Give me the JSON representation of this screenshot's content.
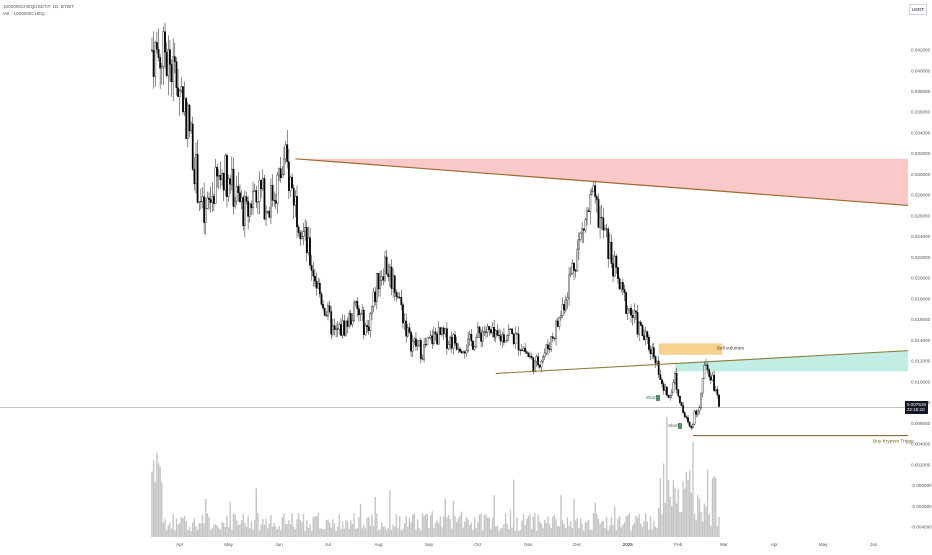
{
  "header": {
    "symbol_line": "1000000CHEQUSDT.P, 1D, BYBIT",
    "volume_line": "Vol · 1000000CHEQ"
  },
  "unit_label": "USDT",
  "price_tag": {
    "price": "0.007519",
    "countdown": "22:15:10"
  },
  "colors": {
    "candle_up": "#ffffff",
    "candle_down": "#000000",
    "resistance_zone": "#f7b6b6",
    "resistance_line": "#9c6a2e",
    "support_zone": "#a8e6d8",
    "support_line": "#8b7d3a",
    "sell_volume_box": "#f6c97a",
    "buy_line": "#7a5a1e",
    "short_tag": "#5a8d6b",
    "volume_bar": "#c4c4c4"
  },
  "annotations": {
    "sell_volumes": "Sell volumes",
    "buy_trigger": "Buy Krypton Trigge",
    "short_labels": [
      "Short",
      "Short"
    ]
  },
  "chart_data": {
    "type": "candlestick",
    "x_labels": [
      "Apr",
      "May",
      "Jun",
      "Jul",
      "Aug",
      "Sep",
      "Oct",
      "Nov",
      "Dec",
      "2025",
      "Feb",
      "Mar",
      "Apr",
      "May",
      "Jun"
    ],
    "y_ticks": [
      "0.042000",
      "0.040000",
      "0.038000",
      "0.036000",
      "0.034000",
      "0.032000",
      "0.030000",
      "0.028000",
      "0.026000",
      "0.024000",
      "0.022000",
      "0.020000",
      "0.018000",
      "0.016000",
      "0.014000",
      "0.012000",
      "0.010000",
      "0.008000",
      "0.006000",
      "0.004000",
      "0.002000",
      "-0.000000",
      "-0.002000",
      "-0.004000"
    ],
    "ylim": [
      -0.0043,
      0.0445
    ],
    "last_price": 0.007519,
    "close_path": [
      [
        "2024-03-15",
        0.042
      ],
      [
        "2024-03-25",
        0.041
      ],
      [
        "2024-04-02",
        0.038
      ],
      [
        "2024-04-08",
        0.0335
      ],
      [
        "2024-04-12",
        0.029
      ],
      [
        "2024-04-16",
        0.0255
      ],
      [
        "2024-04-22",
        0.0285
      ],
      [
        "2024-04-28",
        0.0305
      ],
      [
        "2024-05-05",
        0.028
      ],
      [
        "2024-05-12",
        0.026
      ],
      [
        "2024-05-18",
        0.029
      ],
      [
        "2024-05-25",
        0.027
      ],
      [
        "2024-06-01",
        0.0295
      ],
      [
        "2024-06-05",
        0.031
      ],
      [
        "2024-06-10",
        0.028
      ],
      [
        "2024-06-18",
        0.023
      ],
      [
        "2024-06-25",
        0.019
      ],
      [
        "2024-07-05",
        0.0145
      ],
      [
        "2024-07-12",
        0.0155
      ],
      [
        "2024-07-18",
        0.017
      ],
      [
        "2024-07-25",
        0.015
      ],
      [
        "2024-08-01",
        0.02
      ],
      [
        "2024-08-05",
        0.0215
      ],
      [
        "2024-08-12",
        0.019
      ],
      [
        "2024-08-20",
        0.014
      ],
      [
        "2024-08-28",
        0.013
      ],
      [
        "2024-09-05",
        0.0145
      ],
      [
        "2024-09-15",
        0.014
      ],
      [
        "2024-09-25",
        0.0135
      ],
      [
        "2024-10-05",
        0.015
      ],
      [
        "2024-10-12",
        0.014
      ],
      [
        "2024-10-20",
        0.0148
      ],
      [
        "2024-10-28",
        0.0135
      ],
      [
        "2024-11-05",
        0.0115
      ],
      [
        "2024-11-12",
        0.013
      ],
      [
        "2024-11-20",
        0.016
      ],
      [
        "2024-11-28",
        0.021
      ],
      [
        "2024-12-05",
        0.025
      ],
      [
        "2024-12-10",
        0.0275
      ],
      [
        "2024-12-14",
        0.026
      ],
      [
        "2024-12-20",
        0.023
      ],
      [
        "2024-12-28",
        0.0185
      ],
      [
        "2025-01-05",
        0.016
      ],
      [
        "2025-01-12",
        0.014
      ],
      [
        "2025-01-18",
        0.0125
      ],
      [
        "2025-01-22",
        0.0095
      ],
      [
        "2025-01-26",
        0.0085
      ],
      [
        "2025-01-30",
        0.0105
      ],
      [
        "2025-02-04",
        0.007
      ],
      [
        "2025-02-08",
        0.0055
      ],
      [
        "2025-02-14",
        0.008
      ],
      [
        "2025-02-18",
        0.012
      ],
      [
        "2025-02-22",
        0.0105
      ],
      [
        "2025-02-26",
        0.0075
      ]
    ],
    "lines": [
      {
        "name": "resistance",
        "from": [
          "2024-06-11",
          0.0315
        ],
        "to": [
          "2025-06-22",
          0.027
        ]
      },
      {
        "name": "support",
        "from": [
          "2024-10-12",
          0.0108
        ],
        "to": [
          "2025-06-22",
          0.013
        ]
      },
      {
        "name": "buy_level",
        "from": [
          "2025-02-10",
          0.0048
        ],
        "to": [
          "2025-06-22",
          0.0048
        ]
      }
    ],
    "zones": [
      {
        "name": "resistance_zone",
        "from": "2024-06-11",
        "to": "2025-06-22",
        "top": 0.0315
      },
      {
        "name": "support_zone",
        "from": "2025-01-30",
        "to": "2025-06-22",
        "bottom": 0.011
      },
      {
        "name": "sell_volumes_box",
        "from": "2025-01-20",
        "to": "2025-02-28",
        "top": 0.0137,
        "bottom": 0.0126
      }
    ],
    "volume_profile": "high spike near 2025-01-25 and 2025-02-10; moderate elsewhere"
  }
}
